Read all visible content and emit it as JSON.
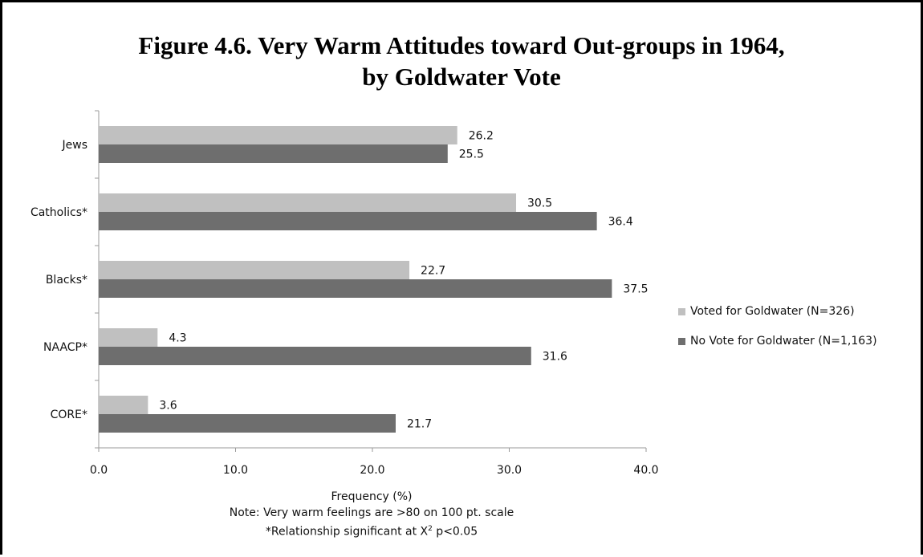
{
  "chart_data": {
    "type": "bar",
    "orientation": "horizontal",
    "title": "Figure 4.6. Very Warm Attitudes toward Out-groups in 1964, by Goldwater Vote",
    "title_lines": [
      "Figure 4.6. Very Warm Attitudes toward Out-groups in 1964,",
      "by Goldwater Vote"
    ],
    "categories": [
      "Jews",
      "Catholics*",
      "Blacks*",
      "NAACP*",
      "CORE*"
    ],
    "series": [
      {
        "name": "Voted for Goldwater (N=326)",
        "color": "#c0c0c0",
        "values": [
          26.2,
          30.5,
          22.7,
          4.3,
          3.6
        ]
      },
      {
        "name": "No Vote for Goldwater (N=1,163)",
        "color": "#6e6e6e",
        "values": [
          25.5,
          36.4,
          37.5,
          31.6,
          21.7
        ]
      }
    ],
    "xlabel": "Frequency (%)",
    "xlim": [
      0,
      40
    ],
    "xticks": [
      "0.0",
      "10.0",
      "20.0",
      "30.0",
      "40.0"
    ],
    "grid": false,
    "legend_position": "right",
    "notes": {
      "line1": "Note: Very warm feelings are >80 on 100 pt. scale",
      "line2_prefix": "*Relationship significant at X",
      "line2_sup": "2",
      "line2_suffix": " p<0.05"
    }
  }
}
